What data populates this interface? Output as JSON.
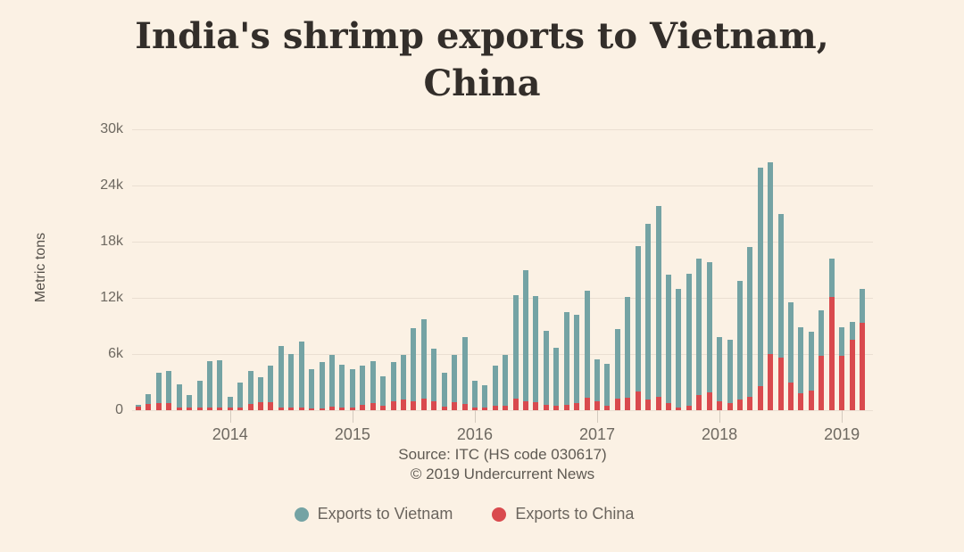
{
  "page": {
    "background": "#fbf1e4"
  },
  "title": {
    "line1": "India's shrimp exports to Vietnam,",
    "line2": "China"
  },
  "footer": {
    "source": "Source: ITC (HS code 030617)",
    "copyright": "© 2019 Undercurrent News"
  },
  "legend": {
    "vietnam_label": "Exports to Vietnam",
    "china_label": "Exports to China"
  },
  "chart_data": {
    "type": "bar",
    "stacked": true,
    "title": "India's shrimp exports to Vietnam, China",
    "xlabel": "",
    "ylabel": "Metric tons",
    "ylim": [
      0,
      30000
    ],
    "grid": true,
    "legend_position": "bottom",
    "yticks": [
      {
        "label": "0",
        "value": 0
      },
      {
        "label": "6k",
        "value": 6000
      },
      {
        "label": "12k",
        "value": 12000
      },
      {
        "label": "18k",
        "value": 18000
      },
      {
        "label": "24k",
        "value": 24000
      },
      {
        "label": "30k",
        "value": 30000
      }
    ],
    "xticks": [
      {
        "label": "2014",
        "month_index": 9
      },
      {
        "label": "2015",
        "month_index": 21
      },
      {
        "label": "2016",
        "month_index": 33
      },
      {
        "label": "2017",
        "month_index": 45
      },
      {
        "label": "2018",
        "month_index": 57
      },
      {
        "label": "2019",
        "month_index": 69
      }
    ],
    "categories": [
      "Apr 2013",
      "May 2013",
      "Jun 2013",
      "Jul 2013",
      "Aug 2013",
      "Sep 2013",
      "Oct 2013",
      "Nov 2013",
      "Dec 2013",
      "Jan 2014",
      "Feb 2014",
      "Mar 2014",
      "Apr 2014",
      "May 2014",
      "Jun 2014",
      "Jul 2014",
      "Aug 2014",
      "Sep 2014",
      "Oct 2014",
      "Nov 2014",
      "Dec 2014",
      "Jan 2015",
      "Feb 2015",
      "Mar 2015",
      "Apr 2015",
      "May 2015",
      "Jun 2015",
      "Jul 2015",
      "Aug 2015",
      "Sep 2015",
      "Oct 2015",
      "Nov 2015",
      "Dec 2015",
      "Jan 2016",
      "Feb 2016",
      "Mar 2016",
      "Apr 2016",
      "May 2016",
      "Jun 2016",
      "Jul 2016",
      "Aug 2016",
      "Sep 2016",
      "Oct 2016",
      "Nov 2016",
      "Dec 2016",
      "Jan 2017",
      "Feb 2017",
      "Mar 2017",
      "Apr 2017",
      "May 2017",
      "Jun 2017",
      "Jul 2017",
      "Aug 2017",
      "Sep 2017",
      "Oct 2017",
      "Nov 2017",
      "Dec 2017",
      "Jan 2018",
      "Feb 2018",
      "Mar 2018",
      "Apr 2018",
      "May 2018",
      "Jun 2018",
      "Jul 2018",
      "Aug 2018",
      "Sep 2018",
      "Oct 2018",
      "Nov 2018",
      "Dec 2018",
      "Jan 2019",
      "Feb 2019",
      "Mar 2019"
    ],
    "series": [
      {
        "name": "Exports to China",
        "color": "#d94a4e",
        "values": [
          400,
          700,
          800,
          800,
          300,
          250,
          300,
          300,
          300,
          250,
          250,
          700,
          900,
          900,
          300,
          250,
          250,
          200,
          200,
          400,
          300,
          300,
          600,
          800,
          500,
          1000,
          1100,
          1000,
          1200,
          1000,
          400,
          900,
          700,
          250,
          250,
          500,
          500,
          1200,
          1000,
          900,
          600,
          500,
          600,
          800,
          1300,
          1000,
          500,
          1200,
          1300,
          2000,
          1100,
          1400,
          800,
          300,
          500,
          1600,
          1900,
          1000,
          800,
          1100,
          1400,
          2600,
          6000,
          5600,
          3000,
          1800,
          2100,
          5800,
          12100,
          5800,
          7500,
          9300
        ]
      },
      {
        "name": "Exports to Vietnam",
        "color": "#74a3a4",
        "values": [
          200,
          1000,
          3200,
          3400,
          2500,
          1350,
          2800,
          4900,
          5000,
          1150,
          2750,
          3500,
          2600,
          3900,
          6600,
          5750,
          7050,
          4200,
          4900,
          5500,
          4600,
          4100,
          4200,
          4400,
          3100,
          4100,
          4800,
          7800,
          8500,
          5600,
          3600,
          5000,
          7100,
          2850,
          2450,
          4300,
          5400,
          11100,
          14000,
          11300,
          7900,
          6200,
          9900,
          9400,
          11500,
          4400,
          4500,
          7500,
          10800,
          15500,
          18800,
          20400,
          13700,
          12700,
          14100,
          14600,
          13900,
          6800,
          6700,
          12700,
          16000,
          23300,
          20500,
          15400,
          8500,
          7100,
          6300,
          4900,
          4100,
          3100,
          1900,
          3700
        ]
      }
    ]
  }
}
